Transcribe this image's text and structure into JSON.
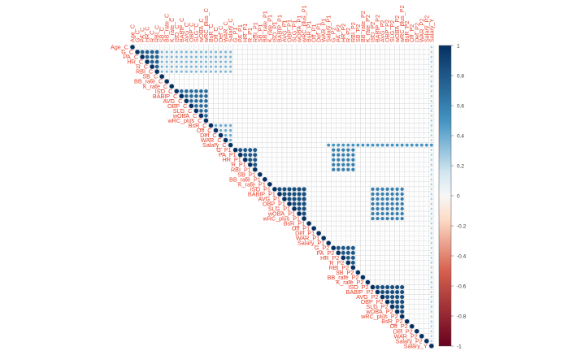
{
  "chart_data": {
    "type": "heatmap",
    "style": "corrplot-upper-circles",
    "variables": [
      "Age_C",
      "G_C",
      "PA_C",
      "HR_C",
      "R_C",
      "RBI_C",
      "SB_C",
      "BB_rate_C",
      "K_rate_C",
      "ISO_C",
      "BABIP_C",
      "AVG_C",
      "OBP_C",
      "SLG_C",
      "wOBA_C",
      "wRC_plus_C",
      "BsR_C",
      "Off_C",
      "Def_C",
      "WAR_C",
      "Salary_C",
      "G_P1",
      "PA_P1",
      "HR_P1",
      "R_P1",
      "RBI_P1",
      "SB_P1",
      "BB_rate_P1",
      "K_rate_P1",
      "ISO_P1",
      "BABIP_P1",
      "AVG_P1",
      "OBP_P1",
      "SLG_P1",
      "wOBA_P1",
      "wRC_plus_P1",
      "BsR_P1",
      "Off_P1",
      "Def_P1",
      "WAR_P1",
      "Salary_P1",
      "G_P2",
      "PA_P2",
      "HR_P2",
      "R_P2",
      "RBI_P2",
      "SB_P2",
      "BB_rate_P2",
      "K_rate_P2",
      "ISO_P2",
      "BABIP_P2",
      "AVG_P2",
      "OBP_P2",
      "SLG_P2",
      "wOBA_P2",
      "wRC_plus_P2",
      "BsR_P2",
      "Off_P2",
      "Def_P2",
      "WAR_P2",
      "Salary_P2",
      "Salary_Y"
    ],
    "visible_row_labels": {
      "0": "Age_C",
      "1": "G_C",
      "2": "PA_C",
      "3": "HR_C",
      "4": "R_C",
      "5": "RBI_C",
      "6": "SB_C",
      "7": "BB_rate_C",
      "8": "K_rate_C",
      "9": "ISO_C",
      "10": "BABIP_C",
      "11": "AVG_C",
      "12": "OBP_C",
      "13": "SLG_C",
      "14": "wOBA_C",
      "15": "wRC_plus_C",
      "16": "BsR_C",
      "17": "Off_C",
      "18": "Def_C",
      "19": "WAR_C",
      "20": "Salary_C",
      "21": "G_P1",
      "22": "PA_P1",
      "23": "HR_P1",
      "24": "R_P1",
      "25": "RBI_P1",
      "26": "SB_P1",
      "27": "BB_rate_P1",
      "28": "K_rate_P1",
      "29": "ISO_P1",
      "30": "BABIP_P1",
      "31": "AVG_P1",
      "32": "OBP_P1",
      "33": "SLG_P1",
      "34": "wOBA_P1",
      "35": "wRC_plus_P1",
      "36": "BsR_P1",
      "37": "Off_P1",
      "38": "Def_P1",
      "39": "WAR_P1",
      "40": "Salary_P1",
      "41": "G_P2",
      "42": "PA_P2",
      "43": "HR_P2",
      "44": "R_P2",
      "45": "RBI_P2",
      "46": "SB_P2",
      "47": "BB_rate_P2",
      "48": "K_rate_P2",
      "49": "ISO_P2",
      "50": "BABIP_P2",
      "51": "AVG_P2",
      "52": "OBP_P2",
      "53": "SLG_P2",
      "54": "wOBA_P2",
      "55": "wRC_plus_P2",
      "56": "BsR_P2",
      "57": "Off_P2",
      "58": "Def_P2",
      "59": "WAR_P2",
      "60": "Salary_P2",
      "61": "Salary_Y"
    },
    "row_label_text": [
      "Age_C",
      "G_C",
      "PA_C",
      "HR_C",
      "R_C",
      "RBI_C",
      "SB_C",
      "BB_rate_C",
      "K_rate_C",
      "ISO_C",
      "BABIP_C",
      "AVG_C",
      "OBP_C",
      "SLG_C",
      "wOBA_C",
      "wRC_plus_C",
      "BsR_C",
      "Off_C",
      "Def_C",
      "WAR_C",
      "Salary_C",
      "G_P1",
      "PA_P1",
      "HR_P1",
      "R_P1",
      "RBI_P1",
      "SB_P1",
      "BB_rate_P1",
      "K_rate_P1",
      "ISO_P1",
      "BABIP_P1",
      "AVG_P1",
      "OBP_P1",
      "SLG_P1",
      "wOBA_P1",
      "wRC_plus_P1",
      "BsR_P1",
      "Off_P1",
      "Def_P1",
      "WAR_P1",
      "Salary_P1",
      "G_P2",
      "PA_P2",
      "HR_P2",
      "R_P2",
      "RBI_P2",
      "SB_P2",
      "BB_rate_P2",
      "K_rate_P2",
      "ISO_P2",
      "BABIP_P2",
      "AVG_P2",
      "OBP_P2",
      "SLG_P2",
      "wOBA_P2",
      "wRC_plus_P2",
      "BsR_P2",
      "Off_P2",
      "Def_P2",
      "WAR_P2",
      "Salary_P2",
      "Salary_Y"
    ],
    "blocks": [
      {
        "rows": [
          0,
          0
        ],
        "cols": [
          1,
          20
        ],
        "value": 0.1
      },
      {
        "rows": [
          1,
          5
        ],
        "cols": [
          1,
          5
        ],
        "value": 0.75
      },
      {
        "rows": [
          1,
          5
        ],
        "cols": [
          6,
          20
        ],
        "value": 0.35
      },
      {
        "rows": [
          9,
          15
        ],
        "cols": [
          9,
          15
        ],
        "value": 0.7
      },
      {
        "rows": [
          16,
          20
        ],
        "cols": [
          16,
          20
        ],
        "value": 0.4
      },
      {
        "rows": [
          21,
          25
        ],
        "cols": [
          21,
          25
        ],
        "value": 0.8
      },
      {
        "rows": [
          29,
          35
        ],
        "cols": [
          29,
          35
        ],
        "value": 0.85
      },
      {
        "rows": [
          21,
          25
        ],
        "cols": [
          41,
          45
        ],
        "value": 0.6
      },
      {
        "rows": [
          29,
          35
        ],
        "cols": [
          49,
          55
        ],
        "value": 0.6
      },
      {
        "rows": [
          41,
          45
        ],
        "cols": [
          41,
          45
        ],
        "value": 0.8
      },
      {
        "rows": [
          49,
          55
        ],
        "cols": [
          49,
          55
        ],
        "value": 0.85
      },
      {
        "rows": [
          0,
          61
        ],
        "cols": [
          61,
          61
        ],
        "value": 0.25
      },
      {
        "rows": [
          20,
          20
        ],
        "cols": [
          40,
          61
        ],
        "value": 0.5
      }
    ],
    "default_value": 0.05,
    "legend": {
      "ticks": [
        "1",
        "0.8",
        "0.6",
        "0.4",
        "0.2",
        "0",
        "-0.2",
        "-0.4",
        "-0.6",
        "-0.8",
        "-1"
      ],
      "range": [
        -1,
        1
      ],
      "placement": "right"
    },
    "colors": {
      "strong_positive": "#053061",
      "positive": "#4393c3",
      "weak_positive": "#d1e5f0",
      "neutral": "#f7f7f7",
      "weak_negative": "#fddbc7",
      "negative": "#d6604d",
      "strong_negative": "#67001f",
      "label_color": "#e8402a",
      "grid_color": "#d9d9d9"
    }
  }
}
